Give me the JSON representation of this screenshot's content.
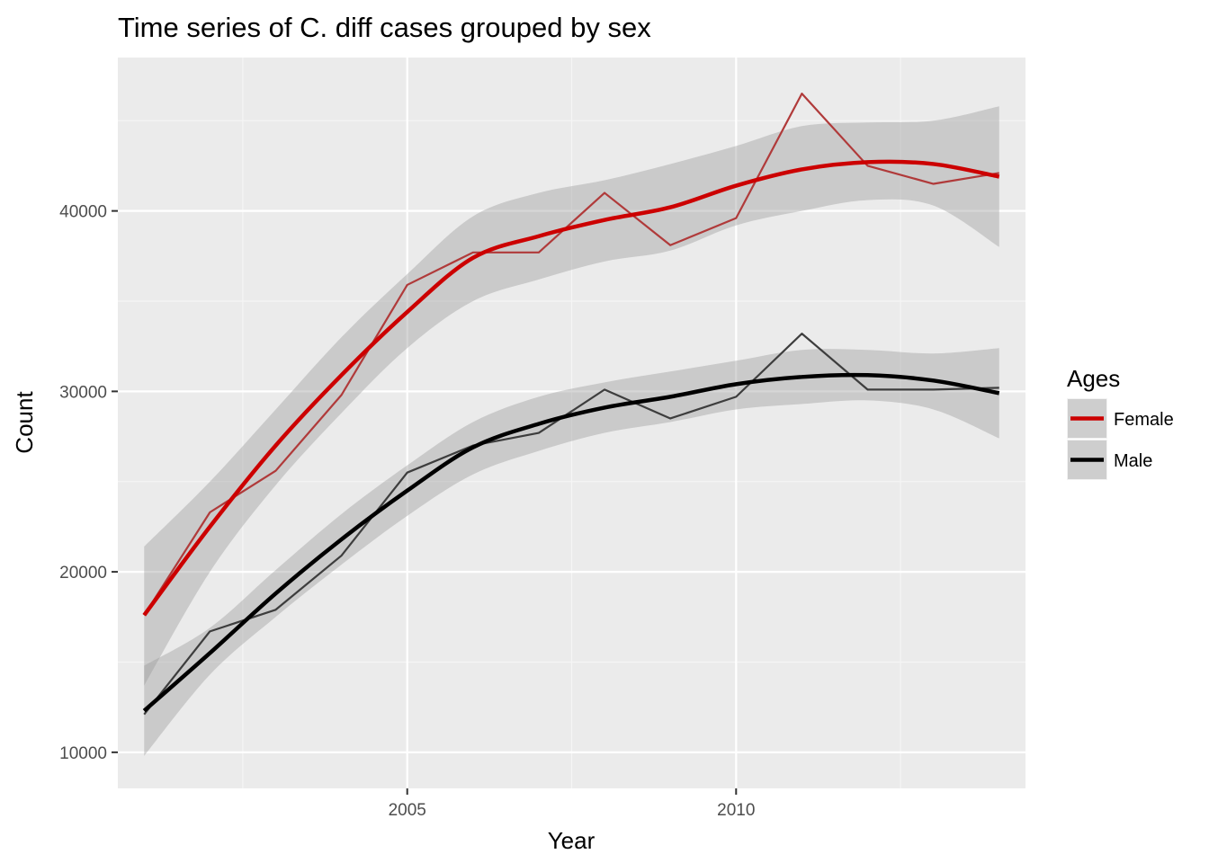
{
  "chart_data": {
    "type": "line",
    "title": "Time series of C. diff cases grouped by sex",
    "xlabel": "Year",
    "ylabel": "Count",
    "xlim": [
      2000.6,
      2014.4
    ],
    "ylim": [
      8000,
      48500
    ],
    "x_ticks": [
      2005,
      2010
    ],
    "x_tick_labels": [
      "2005",
      "2010"
    ],
    "y_ticks": [
      10000,
      20000,
      30000,
      40000
    ],
    "y_tick_labels": [
      "10000",
      "20000",
      "30000",
      "40000"
    ],
    "grid": true,
    "legend": {
      "title": "Ages",
      "position": "right"
    },
    "x": [
      2001,
      2002,
      2003,
      2004,
      2005,
      2006,
      2007,
      2008,
      2009,
      2010,
      2011,
      2012,
      2013,
      2014
    ],
    "series": [
      {
        "name": "Female",
        "color": "#cc0000",
        "raw_color": "#b03a3a",
        "values": [
          17600,
          23300,
          25600,
          29800,
          35900,
          37700,
          37700,
          41000,
          38100,
          39600,
          46500,
          42500,
          41500,
          42100
        ],
        "smooth_values": [
          17600,
          22500,
          27000,
          30900,
          34400,
          37400,
          38600,
          39500,
          40200,
          41400,
          42300,
          42700,
          42600,
          41900
        ],
        "ci_lower": [
          13700,
          20000,
          24800,
          28800,
          32400,
          35000,
          36200,
          37200,
          37800,
          39200,
          40000,
          40600,
          40300,
          38000
        ],
        "ci_upper": [
          21400,
          25000,
          29000,
          33000,
          36500,
          39700,
          41000,
          41700,
          42600,
          43600,
          44700,
          44900,
          45000,
          45800
        ]
      },
      {
        "name": "Male",
        "color": "#000000",
        "raw_color": "#3d3d3d",
        "values": [
          12100,
          16700,
          17900,
          20900,
          25500,
          27000,
          27700,
          30100,
          28500,
          29700,
          33200,
          30100,
          30100,
          30200
        ],
        "smooth_values": [
          12300,
          15500,
          18800,
          21800,
          24500,
          26900,
          28200,
          29100,
          29700,
          30400,
          30800,
          30900,
          30600,
          29900
        ],
        "ci_lower": [
          9800,
          14300,
          17500,
          20400,
          23100,
          25400,
          26700,
          27700,
          28300,
          29000,
          29300,
          29500,
          29000,
          27400
        ],
        "ci_upper": [
          14800,
          16900,
          20100,
          23200,
          25900,
          28300,
          29700,
          30500,
          31100,
          31700,
          32300,
          32300,
          32100,
          32400
        ]
      }
    ]
  }
}
